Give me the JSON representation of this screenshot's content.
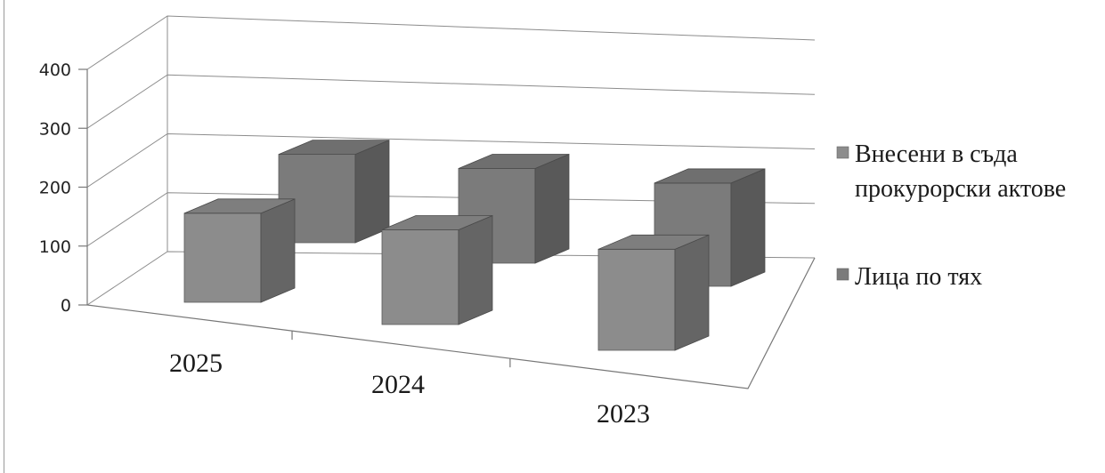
{
  "chart_data": {
    "type": "bar",
    "categories": [
      "2025",
      "2024",
      "2023"
    ],
    "series": [
      {
        "name": "Внесени в съда прокурорски актове",
        "values": [
          252,
          268,
          286
        ],
        "color": "#8c8c8c"
      },
      {
        "name": "Лица по тях",
        "values": [
          250,
          268,
          292
        ],
        "color": "#7b7b7b"
      }
    ],
    "y_ticks": [
      "0",
      "100",
      "200",
      "300",
      "400"
    ],
    "ylim": [
      0,
      400
    ],
    "grid": true,
    "legend_position": "right",
    "style": "3d-clustered-column"
  }
}
